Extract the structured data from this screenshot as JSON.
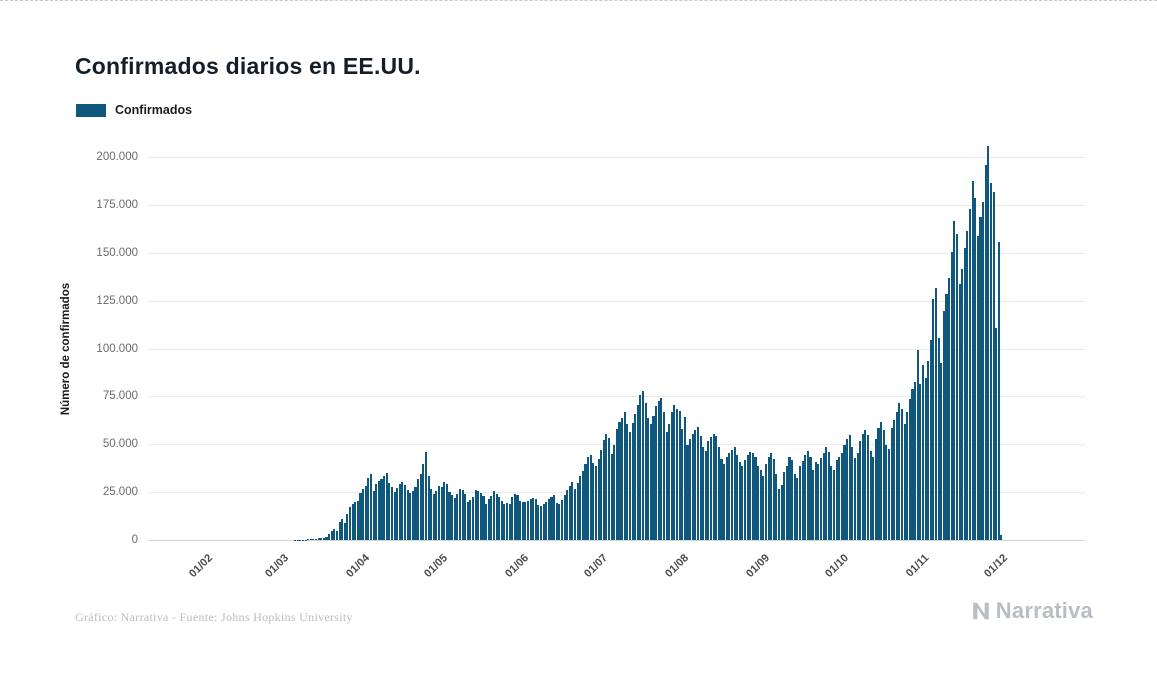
{
  "title": "Confirmados diarios en EE.UU.",
  "legend": {
    "label": "Confirmados"
  },
  "footer": {
    "caption": "Gráfico: Narrativa - Fuente: Johns Hopkins University",
    "brand": "Narrativa"
  },
  "colors": {
    "bar": "#10577d",
    "grid": "#eaeaea",
    "baseline": "#d5d5d5",
    "title_text": "#141e28",
    "axis_text": "#6b6b6b",
    "x_tick_text": "#4a4a4a",
    "footer_text": "#bcbcbc",
    "brand_text": "#b9bec4",
    "background": "#ffffff"
  },
  "chart_data": {
    "type": "bar",
    "title": "Confirmados diarios en EE.UU.",
    "xlabel": "",
    "ylabel": "Número de confirmados",
    "ylim": [
      0,
      210000
    ],
    "grid": true,
    "legend_position": "top-left",
    "start_date": "22/01/2020",
    "frequency": "daily",
    "y_ticks": [
      {
        "value": 0,
        "label": "0"
      },
      {
        "value": 25000,
        "label": "25.000"
      },
      {
        "value": 50000,
        "label": "50.000"
      },
      {
        "value": 75000,
        "label": "75.000"
      },
      {
        "value": 100000,
        "label": "100.000"
      },
      {
        "value": 125000,
        "label": "125.000"
      },
      {
        "value": 150000,
        "label": "150.000"
      },
      {
        "value": 175000,
        "label": "175.000"
      },
      {
        "value": 200000,
        "label": "200.000"
      }
    ],
    "x_ticks": [
      {
        "label": "01/02",
        "day_index": 10
      },
      {
        "label": "01/03",
        "day_index": 39
      },
      {
        "label": "01/04",
        "day_index": 70
      },
      {
        "label": "01/05",
        "day_index": 100
      },
      {
        "label": "01/06",
        "day_index": 131
      },
      {
        "label": "01/07",
        "day_index": 161
      },
      {
        "label": "01/08",
        "day_index": 192
      },
      {
        "label": "01/09",
        "day_index": 223
      },
      {
        "label": "01/10",
        "day_index": 253
      },
      {
        "label": "01/11",
        "day_index": 284
      },
      {
        "label": "01/12",
        "day_index": 314
      }
    ],
    "series": [
      {
        "name": "Confirmados",
        "values": [
          1,
          0,
          1,
          0,
          2,
          3,
          0,
          0,
          2,
          3,
          1,
          0,
          2,
          1,
          1,
          1,
          1,
          0,
          3,
          0,
          2,
          1,
          1,
          1,
          0,
          0,
          1,
          2,
          0,
          1,
          18,
          1,
          0,
          0,
          6,
          1,
          5,
          2,
          8,
          4,
          21,
          15,
          25,
          35,
          75,
          110,
          120,
          150,
          210,
          290,
          310,
          380,
          540,
          800,
          870,
          950,
          1800,
          3000,
          4850,
          5700,
          4900,
          9400,
          11100,
          8850,
          13400,
          17000,
          18700,
          19900,
          20400,
          24700,
          26500,
          28100,
          32400,
          34300,
          25400,
          29500,
          30600,
          31700,
          33300,
          35100,
          29900,
          27600,
          25000,
          27100,
          29100,
          30100,
          28600,
          26100,
          24500,
          25600,
          27600,
          32100,
          34600,
          39600,
          46200,
          33600,
          26600,
          24100,
          25600,
          28100,
          27600,
          30100,
          29100,
          25100,
          23600,
          22100,
          24100,
          26600,
          25900,
          24100,
          19600,
          21100,
          22600,
          26100,
          25600,
          24600,
          23100,
          18600,
          21600,
          23100,
          25600,
          24100,
          22600,
          20600,
          18600,
          19100,
          18600,
          22600,
          24100,
          23600,
          20600,
          19600,
          20100,
          20600,
          21600,
          22100,
          21600,
          18100,
          17600,
          18600,
          20100,
          21600,
          22600,
          23600,
          19100,
          18600,
          21100,
          23600,
          26100,
          28100,
          30100,
          26600,
          29600,
          33600,
          36100,
          39600,
          43100,
          44600,
          40100,
          38600,
          42100,
          47100,
          52100,
          55100,
          53100,
          45100,
          49600,
          58100,
          61600,
          63600,
          66600,
          60600,
          56600,
          61100,
          65600,
          70600,
          75600,
          77600,
          71600,
          63600,
          60600,
          64600,
          70100,
          72600,
          74100,
          66600,
          56600,
          60600,
          67100,
          70600,
          68600,
          67600,
          58100,
          64100,
          49600,
          52600,
          55100,
          57600,
          59100,
          54100,
          48600,
          46600,
          51600,
          53600,
          55600,
          54100,
          48600,
          42100,
          39600,
          43600,
          45600,
          47100,
          48600,
          44600,
          40600,
          38600,
          41600,
          44600,
          46100,
          45600,
          43600,
          38600,
          36600,
          33600,
          39600,
          43600,
          45600,
          42100,
          34600,
          26600,
          28600,
          35600,
          38600,
          43600,
          41600,
          34600,
          32600,
          38600,
          41100,
          44600,
          46600,
          43600,
          36600,
          40600,
          39600,
          42600,
          45600,
          48600,
          46100,
          38600,
          36600,
          41600,
          43600,
          45600,
          49600,
          52600,
          54600,
          48600,
          42600,
          45600,
          51600,
          55600,
          57600,
          54600,
          46600,
          43600,
          52600,
          58600,
          61600,
          57600,
          49600,
          47600,
          58600,
          62600,
          66600,
          71600,
          68600,
          60600,
          66600,
          73600,
          78600,
          82600,
          99100,
          81600,
          91600,
          84600,
          93600,
          104600,
          125600,
          131600,
          105600,
          92600,
          119600,
          128600,
          136600,
          150600,
          166600,
          159600,
          133600,
          141600,
          152600,
          161600,
          172600,
          187600,
          178600,
          158600,
          168600,
          176600,
          195600,
          205600,
          186600,
          181600,
          110600,
          155600,
          2600
        ]
      }
    ]
  }
}
